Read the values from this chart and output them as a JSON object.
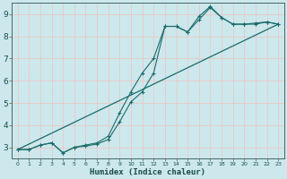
{
  "title": "",
  "xlabel": "Humidex (Indice chaleur)",
  "ylabel": "",
  "bg_color": "#cce8ec",
  "grid_color": "#e8c8c8",
  "line_color": "#1a6b6b",
  "xlim": [
    -0.5,
    23.5
  ],
  "ylim": [
    2.5,
    9.5
  ],
  "xticks": [
    0,
    1,
    2,
    3,
    4,
    5,
    6,
    7,
    8,
    9,
    10,
    11,
    12,
    13,
    14,
    15,
    16,
    17,
    18,
    19,
    20,
    21,
    22,
    23
  ],
  "yticks": [
    3,
    4,
    5,
    6,
    7,
    8,
    9
  ],
  "series1_x": [
    0,
    1,
    2,
    3,
    4,
    5,
    6,
    7,
    8,
    9,
    10,
    11,
    12,
    13,
    14,
    15,
    16,
    17,
    18,
    19,
    20,
    21,
    22,
    23
  ],
  "series1_y": [
    2.9,
    2.9,
    3.1,
    3.2,
    2.75,
    3.0,
    3.05,
    3.15,
    3.35,
    4.15,
    5.05,
    5.5,
    6.35,
    8.45,
    8.45,
    8.2,
    8.75,
    9.3,
    8.85,
    8.55,
    8.55,
    8.55,
    8.65,
    8.55
  ],
  "series2_x": [
    0,
    1,
    2,
    3,
    4,
    5,
    6,
    7,
    8,
    9,
    10,
    11,
    12,
    13,
    14,
    15,
    16,
    17,
    18,
    19,
    20,
    21,
    22,
    23
  ],
  "series2_y": [
    2.9,
    2.9,
    3.1,
    3.2,
    2.75,
    3.0,
    3.1,
    3.2,
    3.5,
    4.55,
    5.5,
    6.35,
    7.0,
    8.45,
    8.45,
    8.2,
    8.9,
    9.35,
    8.85,
    8.55,
    8.55,
    8.6,
    8.65,
    8.55
  ],
  "series3_x": [
    0,
    23
  ],
  "series3_y": [
    2.9,
    8.55
  ]
}
